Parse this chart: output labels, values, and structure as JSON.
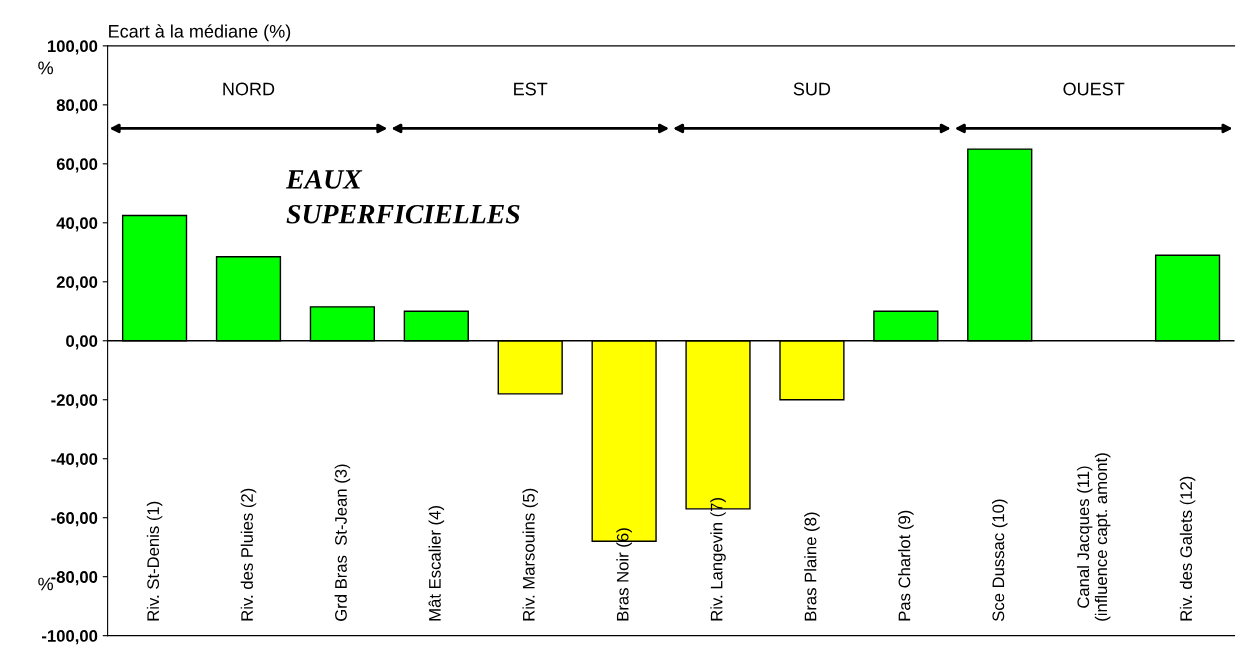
{
  "chart_data": {
    "type": "bar",
    "title": "Ecart à la médiane (%)",
    "categories": [
      "Riv. St-Denis (1)",
      "Riv. des Pluies (2)",
      "Grd Bras  St-Jean (3)",
      "Mât Escalier (4)",
      "Riv. Marsouins (5)",
      "Bras Noir (6)",
      "Riv. Langevin (7)",
      "Bras Plaine (8)",
      "Pas Charlot (9)",
      "Sce Dussac (10)",
      "Canal Jacques (11)\n(influence capt. amont)",
      "Riv. des Galets (12)"
    ],
    "values": [
      42.5,
      28.5,
      11.5,
      10,
      -18,
      -68,
      -57,
      -20,
      10,
      65,
      null,
      29
    ],
    "colors": [
      "#00ff00",
      "#00ff00",
      "#00ff00",
      "#00ff00",
      "#ffff00",
      "#ffff00",
      "#ffff00",
      "#ffff00",
      "#00ff00",
      "#00ff00",
      "#00ff00",
      "#00ff00"
    ],
    "ylim": [
      -100,
      100
    ],
    "yticks": [
      {
        "value": -100,
        "label": "-100,00"
      },
      {
        "value": -80,
        "label": "-80,00"
      },
      {
        "value": -60,
        "label": "-60,00"
      },
      {
        "value": -40,
        "label": "-40,00"
      },
      {
        "value": -20,
        "label": "-20,00"
      },
      {
        "value": 0,
        "label": "0,00"
      },
      {
        "value": 20,
        "label": "20,00"
      },
      {
        "value": 40,
        "label": "40,00"
      },
      {
        "value": 60,
        "label": "60,00"
      },
      {
        "value": 80,
        "label": "80,00"
      },
      {
        "value": 100,
        "label": "100,00"
      }
    ],
    "annotations": [
      "NORD",
      "EST",
      "SUD",
      "OUEST",
      "EAUX\nSUPERFICIELLES",
      "%",
      "%"
    ],
    "ref_lines": [
      {
        "axis": "y",
        "value": 0,
        "color": "#000000"
      }
    ],
    "grid": false
  }
}
